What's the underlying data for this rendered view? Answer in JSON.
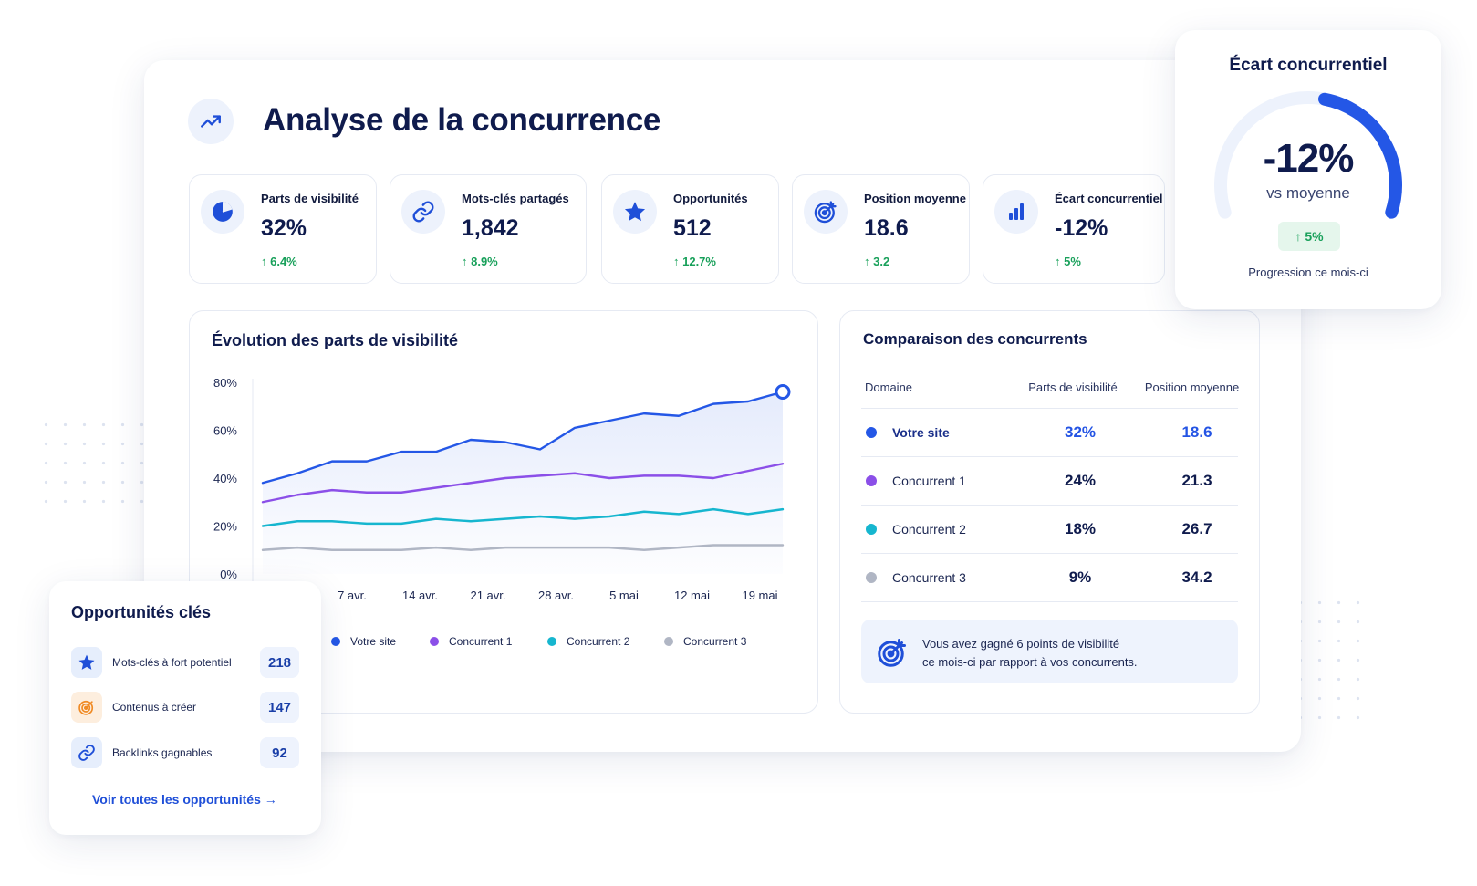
{
  "header": {
    "title": "Analyse de la concurrence",
    "icon": "trend-up-icon"
  },
  "kpis": [
    {
      "label": "Parts de visibilité",
      "value": "32%",
      "change": "↑ 6.4%",
      "icon": "pie-chart-icon"
    },
    {
      "label": "Mots-clés partagés",
      "value": "1,842",
      "change": "↑ 8.9%",
      "icon": "link-icon"
    },
    {
      "label": "Opportunités",
      "value": "512",
      "change": "↑ 12.7%",
      "icon": "star-icon"
    },
    {
      "label": "Position moyenne",
      "value": "18.6",
      "change": "↑ 3.2",
      "icon": "target-icon"
    },
    {
      "label": "Écart concurrentiel",
      "value": "-12%",
      "change": "↑ 5%",
      "icon": "bar-chart-icon"
    }
  ],
  "chart": {
    "title": "Évolution des parts de visibilité",
    "y_ticks": [
      "80%",
      "60%",
      "40%",
      "20%",
      "0%"
    ],
    "x_ticks": [
      "7 avr.",
      "14 avr.",
      "21 avr.",
      "28 avr.",
      "5 mai",
      "12 mai",
      "19 mai"
    ],
    "legend": [
      "Votre site",
      "Concurrent 1",
      "Concurrent 2",
      "Concurrent 3"
    ]
  },
  "chart_data": {
    "type": "line",
    "ylim": [
      0,
      80
    ],
    "x_ticks": [
      "7 avr.",
      "14 avr.",
      "21 avr.",
      "28 avr.",
      "5 mai",
      "12 mai",
      "19 mai"
    ],
    "series": [
      {
        "name": "Votre site",
        "color": "#2457e6",
        "values": [
          38,
          42,
          47,
          47,
          51,
          51,
          56,
          55,
          52,
          61,
          64,
          67,
          66,
          71,
          72,
          76
        ]
      },
      {
        "name": "Concurrent 1",
        "color": "#8b4fe8",
        "values": [
          30,
          33,
          35,
          34,
          34,
          36,
          38,
          40,
          41,
          42,
          40,
          41,
          41,
          40,
          43,
          46
        ]
      },
      {
        "name": "Concurrent 2",
        "color": "#16b6cf",
        "values": [
          20,
          22,
          22,
          21,
          21,
          23,
          22,
          23,
          24,
          23,
          24,
          26,
          25,
          27,
          25,
          27
        ]
      },
      {
        "name": "Concurrent 3",
        "color": "#b0b6c4",
        "values": [
          10,
          11,
          10,
          10,
          10,
          11,
          10,
          11,
          11,
          11,
          11,
          10,
          11,
          12,
          12,
          12
        ]
      }
    ]
  },
  "comparison": {
    "title": "Comparaison des concurrents",
    "headers": [
      "Domaine",
      "Parts de visibilité",
      "Position moyenne"
    ],
    "rows": [
      {
        "domain": "Votre site",
        "share": "32%",
        "position": "18.6",
        "color": "#2457e6"
      },
      {
        "domain": "Concurrent 1",
        "share": "24%",
        "position": "21.3",
        "color": "#8b4fe8"
      },
      {
        "domain": "Concurrent 2",
        "share": "18%",
        "position": "26.7",
        "color": "#16b6cf"
      },
      {
        "domain": "Concurrent 3",
        "share": "9%",
        "position": "34.2",
        "color": "#b0b6c4"
      }
    ],
    "insight_line1": "Vous avez gagné 6 points de visibilité",
    "insight_line2": "ce mois-ci par rapport à vos concurrents."
  },
  "gauge": {
    "title": "Écart concurrentiel",
    "value": "-12%",
    "subtitle": "vs moyenne",
    "badge": "↑ 5%",
    "footer": "Progression ce mois-ci",
    "fill_fraction": 0.45
  },
  "opportunities": {
    "title": "Opportunités clés",
    "items": [
      {
        "label": "Mots-clés à fort potentiel",
        "count": "218",
        "icon": "star-icon"
      },
      {
        "label": "Contenus à créer",
        "count": "147",
        "icon": "target-icon"
      },
      {
        "label": "Backlinks gagnables",
        "count": "92",
        "icon": "link-icon"
      }
    ],
    "link": "Voir toutes les opportunités →"
  },
  "colors": {
    "accent": "#2457e6",
    "positive": "#18a05a",
    "navy": "#0f1b4d"
  }
}
